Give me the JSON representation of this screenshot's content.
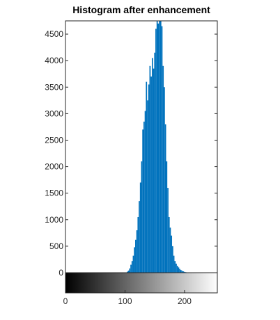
{
  "chart_data": {
    "type": "bar",
    "title": "Histogram after enhancement",
    "xlabel": "",
    "ylabel": "",
    "xlim": [
      0,
      255
    ],
    "ylim": [
      0,
      4750
    ],
    "x_ticks": [
      0,
      100,
      200
    ],
    "y_ticks": [
      0,
      500,
      1000,
      1500,
      2000,
      2500,
      3000,
      3500,
      4000,
      4500
    ],
    "grid": false,
    "colorbar": "gray",
    "bar_color": "#0072BD",
    "bins": [
      104,
      106,
      108,
      110,
      112,
      114,
      116,
      118,
      120,
      122,
      124,
      126,
      128,
      130,
      132,
      134,
      136,
      138,
      140,
      142,
      144,
      146,
      148,
      150,
      152,
      154,
      156,
      158,
      160,
      162,
      164,
      166,
      168,
      170,
      172,
      174,
      176,
      178,
      180,
      182,
      184,
      186,
      188,
      190,
      192,
      194,
      196,
      198,
      200,
      202,
      204,
      206,
      208
    ],
    "values": [
      20,
      40,
      80,
      150,
      220,
      320,
      480,
      620,
      800,
      1050,
      1350,
      1700,
      2100,
      2700,
      2850,
      3050,
      3600,
      3250,
      3550,
      3900,
      3700,
      4050,
      3850,
      4150,
      4600,
      4800,
      4700,
      4750,
      4750,
      4650,
      3900,
      3500,
      2800,
      2100,
      1600,
      1050,
      850,
      700,
      500,
      320,
      220,
      170,
      130,
      100,
      70,
      50,
      35,
      25,
      15,
      10,
      5,
      3,
      2
    ]
  }
}
